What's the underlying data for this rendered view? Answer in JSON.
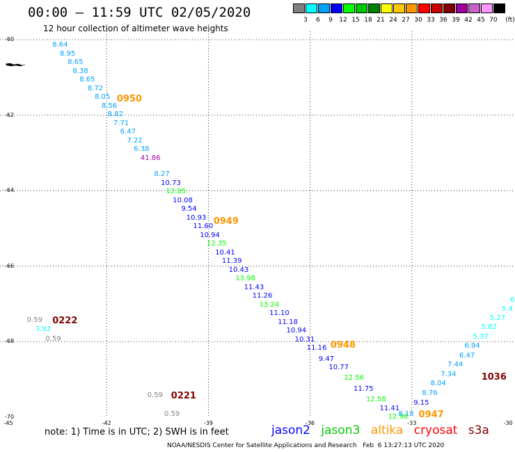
{
  "header": {
    "title": "00:00 – 11:59 UTC 02/05/2020",
    "subtitle": "12 hour collection of altimeter wave heights"
  },
  "colorbar": {
    "units": "(ft)",
    "bins": [
      {
        "label": "3",
        "color": "#808080"
      },
      {
        "label": "6",
        "color": "#00ffff"
      },
      {
        "label": "9",
        "color": "#00a0ff"
      },
      {
        "label": "12",
        "color": "#0000ff"
      },
      {
        "label": "15",
        "color": "#00ff00"
      },
      {
        "label": "18",
        "color": "#00c800"
      },
      {
        "label": "21",
        "color": "#008000"
      },
      {
        "label": "24",
        "color": "#ffff00"
      },
      {
        "label": "27",
        "color": "#ffc800"
      },
      {
        "label": "30",
        "color": "#ff9600"
      },
      {
        "label": "33",
        "color": "#ff0000"
      },
      {
        "label": "36",
        "color": "#c80000"
      },
      {
        "label": "39",
        "color": "#800000"
      },
      {
        "label": "42",
        "color": "#a000a0"
      },
      {
        "label": "45",
        "color": "#c864c8"
      },
      {
        "label": "70",
        "color": "#ff96ff"
      },
      {
        "label": "",
        "color": "#000000"
      }
    ]
  },
  "map": {
    "lat_labels": [
      {
        "label": "-60",
        "lat": -60
      },
      {
        "label": "-62",
        "lat": -62
      },
      {
        "label": "-64",
        "lat": -64
      },
      {
        "label": "-66",
        "lat": -66
      },
      {
        "label": "-68",
        "lat": -68
      },
      {
        "label": "-70",
        "lat": -70
      }
    ],
    "lon_labels": [
      {
        "label": "-45",
        "lon": -45
      },
      {
        "label": "-42",
        "lon": -42
      },
      {
        "label": "-39",
        "lon": -39
      },
      {
        "label": "-36",
        "lon": -36
      },
      {
        "label": "-33",
        "lon": -33
      },
      {
        "label": "-30",
        "lon": -30
      }
    ],
    "satellite_colors": {
      "jason2": "#0000ff",
      "jason3": "#00c800",
      "altika": "#ff9600",
      "cryosat": "#ff0000",
      "s3a": "#800000"
    },
    "time_labels": [
      {
        "text": "0950",
        "lat": -61.58,
        "lon": -41.7,
        "color": "#ff9600"
      },
      {
        "text": "0949",
        "lat": -64.83,
        "lon": -38.85,
        "color": "#ff9600"
      },
      {
        "text": "0948",
        "lat": -68.1,
        "lon": -35.4,
        "color": "#ff9600"
      },
      {
        "text": "0947",
        "lat": -69.95,
        "lon": -32.8,
        "color": "#ff9600"
      },
      {
        "text": "0222",
        "lat": -67.45,
        "lon": -43.6,
        "color": "#800000"
      },
      {
        "text": "0221",
        "lat": -69.45,
        "lon": -40.1,
        "color": "#800000"
      },
      {
        "text": "1036",
        "lat": -68.95,
        "lon": -30.95,
        "color": "#800000"
      }
    ],
    "points": [
      {
        "v": "8.64",
        "lat": -60.17,
        "lon": -43.6,
        "c": "#00a0ff"
      },
      {
        "v": "8.95",
        "lat": -60.4,
        "lon": -43.38,
        "c": "#00a0ff"
      },
      {
        "v": "8.65",
        "lat": -60.63,
        "lon": -43.15,
        "c": "#00a0ff"
      },
      {
        "v": "8.38",
        "lat": -60.86,
        "lon": -43.0,
        "c": "#00a0ff"
      },
      {
        "v": "8.65",
        "lat": -61.09,
        "lon": -42.8,
        "c": "#00a0ff"
      },
      {
        "v": "8.72",
        "lat": -61.32,
        "lon": -42.56,
        "c": "#00a0ff"
      },
      {
        "v": "8.05",
        "lat": -61.55,
        "lon": -42.35,
        "c": "#00a0ff"
      },
      {
        "v": "8.56",
        "lat": -61.78,
        "lon": -42.15,
        "c": "#00a0ff"
      },
      {
        "v": "8.82",
        "lat": -62.01,
        "lon": -41.97,
        "c": "#00a0ff"
      },
      {
        "v": "7.71",
        "lat": -62.24,
        "lon": -41.8,
        "c": "#00a0ff"
      },
      {
        "v": "6.47",
        "lat": -62.47,
        "lon": -41.6,
        "c": "#00a0ff"
      },
      {
        "v": "7.22",
        "lat": -62.7,
        "lon": -41.4,
        "c": "#00a0ff"
      },
      {
        "v": "6.38",
        "lat": -62.93,
        "lon": -41.2,
        "c": "#00a0ff"
      },
      {
        "v": "41.86",
        "lat": -63.16,
        "lon": -41.0,
        "c": "#a000a0"
      },
      {
        "v": "8.27",
        "lat": -63.6,
        "lon": -40.6,
        "c": "#00a0ff"
      },
      {
        "v": "10.73",
        "lat": -63.83,
        "lon": -40.4,
        "c": "#0000ff"
      },
      {
        "v": "12.85",
        "lat": -64.06,
        "lon": -40.25,
        "c": "#00ff00"
      },
      {
        "v": "10.08",
        "lat": -64.29,
        "lon": -40.05,
        "c": "#0000ff"
      },
      {
        "v": "9.54",
        "lat": -64.52,
        "lon": -39.8,
        "c": "#0000ff"
      },
      {
        "v": "10.93",
        "lat": -64.75,
        "lon": -39.65,
        "c": "#0000ff"
      },
      {
        "v": "11.60",
        "lat": -64.98,
        "lon": -39.45,
        "c": "#0000ff"
      },
      {
        "v": "10.94",
        "lat": -65.21,
        "lon": -39.25,
        "c": "#0000ff"
      },
      {
        "v": "12.35",
        "lat": -65.44,
        "lon": -39.05,
        "c": "#00ff00"
      },
      {
        "v": "10.41",
        "lat": -65.67,
        "lon": -38.8,
        "c": "#0000ff"
      },
      {
        "v": "11.39",
        "lat": -65.9,
        "lon": -38.6,
        "c": "#0000ff"
      },
      {
        "v": "10.43",
        "lat": -66.13,
        "lon": -38.4,
        "c": "#0000ff"
      },
      {
        "v": "13.98",
        "lat": -66.36,
        "lon": -38.2,
        "c": "#00ff00"
      },
      {
        "v": "11.43",
        "lat": -66.59,
        "lon": -37.95,
        "c": "#0000ff"
      },
      {
        "v": "11.26",
        "lat": -66.82,
        "lon": -37.7,
        "c": "#0000ff"
      },
      {
        "v": "13.24",
        "lat": -67.05,
        "lon": -37.5,
        "c": "#00ff00"
      },
      {
        "v": "11.10",
        "lat": -67.28,
        "lon": -37.2,
        "c": "#0000ff"
      },
      {
        "v": "11.18",
        "lat": -67.51,
        "lon": -36.95,
        "c": "#0000ff"
      },
      {
        "v": "10.94",
        "lat": -67.74,
        "lon": -36.7,
        "c": "#0000ff"
      },
      {
        "v": "10.31",
        "lat": -67.97,
        "lon": -36.45,
        "c": "#0000ff"
      },
      {
        "v": "11.16",
        "lat": -68.2,
        "lon": -36.1,
        "c": "#0000ff"
      },
      {
        "v": "9.47",
        "lat": -68.49,
        "lon": -35.75,
        "c": "#0000ff"
      },
      {
        "v": "10.77",
        "lat": -68.72,
        "lon": -35.45,
        "c": "#0000ff"
      },
      {
        "v": "12.56",
        "lat": -68.99,
        "lon": -35.0,
        "c": "#00ff00"
      },
      {
        "v": "11.75",
        "lat": -69.29,
        "lon": -34.72,
        "c": "#0000ff"
      },
      {
        "v": "12.58",
        "lat": -69.55,
        "lon": -34.35,
        "c": "#00ff00"
      },
      {
        "v": "11.41",
        "lat": -69.8,
        "lon": -33.95,
        "c": "#0000ff"
      },
      {
        "v": "12.98",
        "lat": -70.02,
        "lon": -33.7,
        "c": "#00ff00"
      },
      {
        "v": "8.18",
        "lat": -69.95,
        "lon": -33.4,
        "c": "#00a0ff"
      },
      {
        "v": "9.15",
        "lat": -69.65,
        "lon": -32.95,
        "c": "#0000ff"
      },
      {
        "v": "8.76",
        "lat": -69.4,
        "lon": -32.7,
        "c": "#00a0ff"
      },
      {
        "v": "8.04",
        "lat": -69.14,
        "lon": -32.45,
        "c": "#00a0ff"
      },
      {
        "v": "7.34",
        "lat": -68.89,
        "lon": -32.15,
        "c": "#00a0ff"
      },
      {
        "v": "7.44",
        "lat": -68.64,
        "lon": -31.95,
        "c": "#00a0ff"
      },
      {
        "v": "6.47",
        "lat": -68.4,
        "lon": -31.6,
        "c": "#00a0ff"
      },
      {
        "v": "6.94",
        "lat": -68.14,
        "lon": -31.45,
        "c": "#00a0ff"
      },
      {
        "v": "5.37",
        "lat": -67.9,
        "lon": -31.2,
        "c": "#00ffff"
      },
      {
        "v": "5.82",
        "lat": -67.65,
        "lon": -30.95,
        "c": "#00ffff"
      },
      {
        "v": "5.27",
        "lat": -67.4,
        "lon": -30.7,
        "c": "#00ffff"
      },
      {
        "v": "5.4",
        "lat": -67.16,
        "lon": -30.35,
        "c": "#00ffff"
      },
      {
        "v": "6",
        "lat": -66.93,
        "lon": -30.1,
        "c": "#00ffff"
      },
      {
        "v": "0.59",
        "lat": -67.45,
        "lon": -44.35,
        "c": "#808080"
      },
      {
        "v": "3.92",
        "lat": -67.7,
        "lon": -44.1,
        "c": "#00ffff"
      },
      {
        "v": "0.59",
        "lat": -67.95,
        "lon": -43.8,
        "c": "#808080"
      },
      {
        "v": "0.59",
        "lat": -69.45,
        "lon": -40.8,
        "c": "#808080"
      },
      {
        "v": "0.59",
        "lat": -69.95,
        "lon": -40.3,
        "c": "#808080"
      }
    ]
  },
  "note": "note: 1) Time is in UTC; 2) SWH is in feet",
  "legend": [
    "jason2",
    "jason3",
    "altika",
    "cryosat",
    "s3a"
  ],
  "footer": "NOAA/NESDIS Center for Satellite Applications and Research   Feb  6 13:27:13 UTC 2020"
}
